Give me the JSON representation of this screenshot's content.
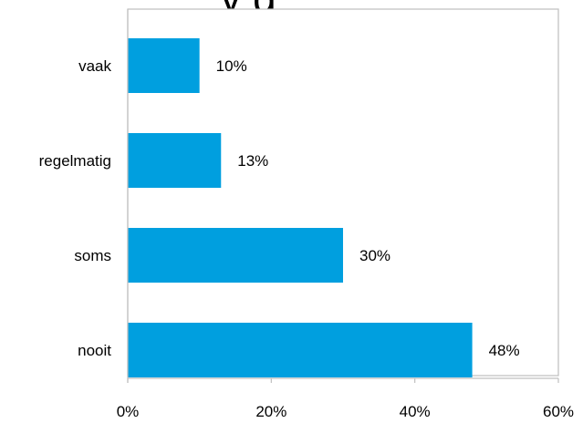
{
  "chart_data": {
    "type": "bar",
    "orientation": "horizontal",
    "title_fragment": "y g",
    "categories": [
      "vaak",
      "regelmatig",
      "soms",
      "nooit"
    ],
    "values": [
      10,
      13,
      30,
      48
    ],
    "data_labels": [
      "10%",
      "13%",
      "30%",
      "48%"
    ],
    "xlim": [
      0,
      60
    ],
    "x_ticks": [
      0,
      20,
      40,
      60
    ],
    "x_tick_labels": [
      "0%",
      "20%",
      "40%",
      "60%"
    ],
    "grid": false,
    "legend": "none",
    "bar_color": "#009FDF",
    "axis_color": "#BFBFBF",
    "border_color": "#BFBFBF"
  }
}
